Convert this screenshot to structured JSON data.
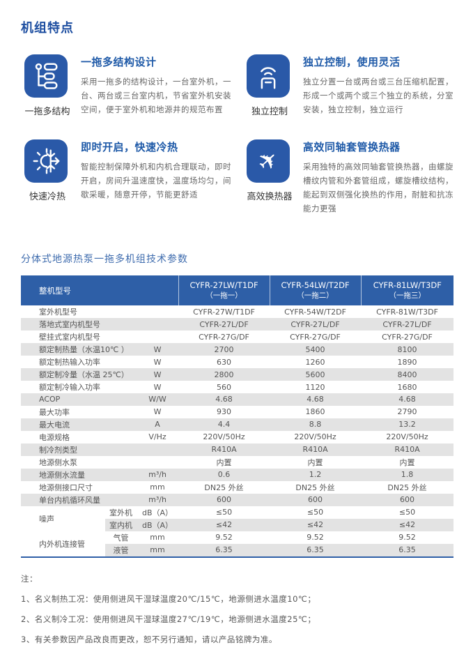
{
  "page": {
    "title": "机组特点"
  },
  "colors": {
    "accent_blue": "#2a59a8",
    "table_header_blue": "#2e5fa7",
    "stripe_gray": "#e3e3e3",
    "title_blue": "#1c4da0"
  },
  "features": [
    {
      "icon": "tree-structure-icon",
      "caption": "一拖多结构",
      "title": "一拖多结构设计",
      "desc": "采用一拖多的结构设计，一台室外机，一台、两台或三台室内机，节省室外机安装空间，便于室外机和地源井的规范布置"
    },
    {
      "icon": "remote-signal-icon",
      "caption": "独立控制",
      "title": "独立控制，使用灵活",
      "desc": "独立分置一台或两台或三台压缩机配置，形成一个或两个或三个独立的系统，分室安装，独立控制，独立运行"
    },
    {
      "icon": "hot-cold-icon",
      "caption": "快速冷热",
      "title": "即时开启，快速冷热",
      "desc": "智能控制保障外机和内机合理联动，即时开启，房间升温速度快，温度场均匀，间歇采暖，随意开停，节能更舒适"
    },
    {
      "icon": "airplane-icon",
      "caption": "高效换热器",
      "title": "高效同轴套管换热器",
      "desc": "采用独特的高效同轴套管换热器，由螺旋槽纹内管和外套管组成，螺旋槽纹结构，能起到双侧强化换热的作用，耐脏和抗冻能力更强"
    }
  ],
  "spec": {
    "title": "分体式地源热泵一拖多机组技术参数",
    "header": {
      "label": "整机型号",
      "models": [
        {
          "model": "CYFR-27LW/T1DF",
          "variant": "（一拖一）"
        },
        {
          "model": "CYFR-54LW/T2DF",
          "variant": "（一拖二）"
        },
        {
          "model": "CYFR-81LW/T3DF",
          "variant": "（一拖三）"
        }
      ]
    },
    "rows": [
      {
        "label": "室外机型号",
        "unit": "",
        "values": [
          "CYFR-27W/T1DF",
          "CYFR-54W/T2DF",
          "CYFR-81W/T3DF"
        ]
      },
      {
        "label": "落地式室内机型号",
        "unit": "",
        "values": [
          "CYFR-27L/DF",
          "CYFR-27L/DF",
          "CYFR-27L/DF"
        ]
      },
      {
        "label": "壁挂式室内机型号",
        "unit": "",
        "values": [
          "CYFR-27G/DF",
          "CYFR-27G/DF",
          "CYFR-27G/DF"
        ]
      },
      {
        "label": "额定制热量（水温10℃ ）",
        "unit": "W",
        "values": [
          "2700",
          "5400",
          "8100"
        ]
      },
      {
        "label": "额定制热输入功率",
        "unit": "W",
        "values": [
          "630",
          "1260",
          "1890"
        ]
      },
      {
        "label": "额定制冷量（水温 25℃）",
        "unit": "W",
        "values": [
          "2800",
          "5600",
          "8400"
        ]
      },
      {
        "label": "额定制冷输入功率",
        "unit": "W",
        "values": [
          "560",
          "1120",
          "1680"
        ]
      },
      {
        "label": "ACOP",
        "unit": "W/W",
        "values": [
          "4.68",
          "4.68",
          "4.68"
        ]
      },
      {
        "label": "最大功率",
        "unit": "W",
        "values": [
          "930",
          "1860",
          "2790"
        ]
      },
      {
        "label": "最大电流",
        "unit": "A",
        "values": [
          "4.4",
          "8.8",
          "13.2"
        ]
      },
      {
        "label": "电源规格",
        "unit": "V/Hz",
        "values": [
          "220V/50Hz",
          "220V/50Hz",
          "220V/50Hz"
        ]
      },
      {
        "label": "制冷剂类型",
        "unit": "",
        "values": [
          "R410A",
          "R410A",
          "R410A"
        ]
      },
      {
        "label": "地源侧水泵",
        "unit": "",
        "values": [
          "内置",
          "内置",
          "内置"
        ]
      },
      {
        "label": "地源侧水流量",
        "unit": "m³/h",
        "values": [
          "0.6",
          "1.2",
          "1.8"
        ]
      },
      {
        "label": "地源侧接口尺寸",
        "unit": "mm",
        "values": [
          "DN25 外丝",
          "DN25 外丝",
          "DN25 外丝"
        ]
      },
      {
        "label": "单台内机循环风量",
        "unit": "m³/h",
        "values": [
          "600",
          "600",
          "600"
        ]
      },
      {
        "group": "噪声",
        "sublabel": "室外机",
        "unit": "dB（A）",
        "values": [
          "≤50",
          "≤50",
          "≤50"
        ]
      },
      {
        "group": "噪声",
        "sublabel": "室内机",
        "unit": "dB（A）",
        "values": [
          "≤42",
          "≤42",
          "≤42"
        ]
      },
      {
        "group": "内外机连接管",
        "sublabel": "气管",
        "unit": "mm",
        "values": [
          "9.52",
          "9.52",
          "9.52"
        ]
      },
      {
        "group": "内外机连接管",
        "sublabel": "液管",
        "unit": "mm",
        "values": [
          "6.35",
          "6.35",
          "6.35"
        ]
      }
    ],
    "notes": {
      "label": "注：",
      "lines": [
        "1、名义制热工况：使用侧进风干湿球温度20℃/15℃，地源侧进水温度10℃；",
        "2、名义制冷工况：使用侧进风干湿球温度27℃/19℃，地源侧进水温度25℃；",
        "3、有关参数因产品改良而更改，恕不另行通知，请以产品铭牌为准。"
      ]
    }
  }
}
